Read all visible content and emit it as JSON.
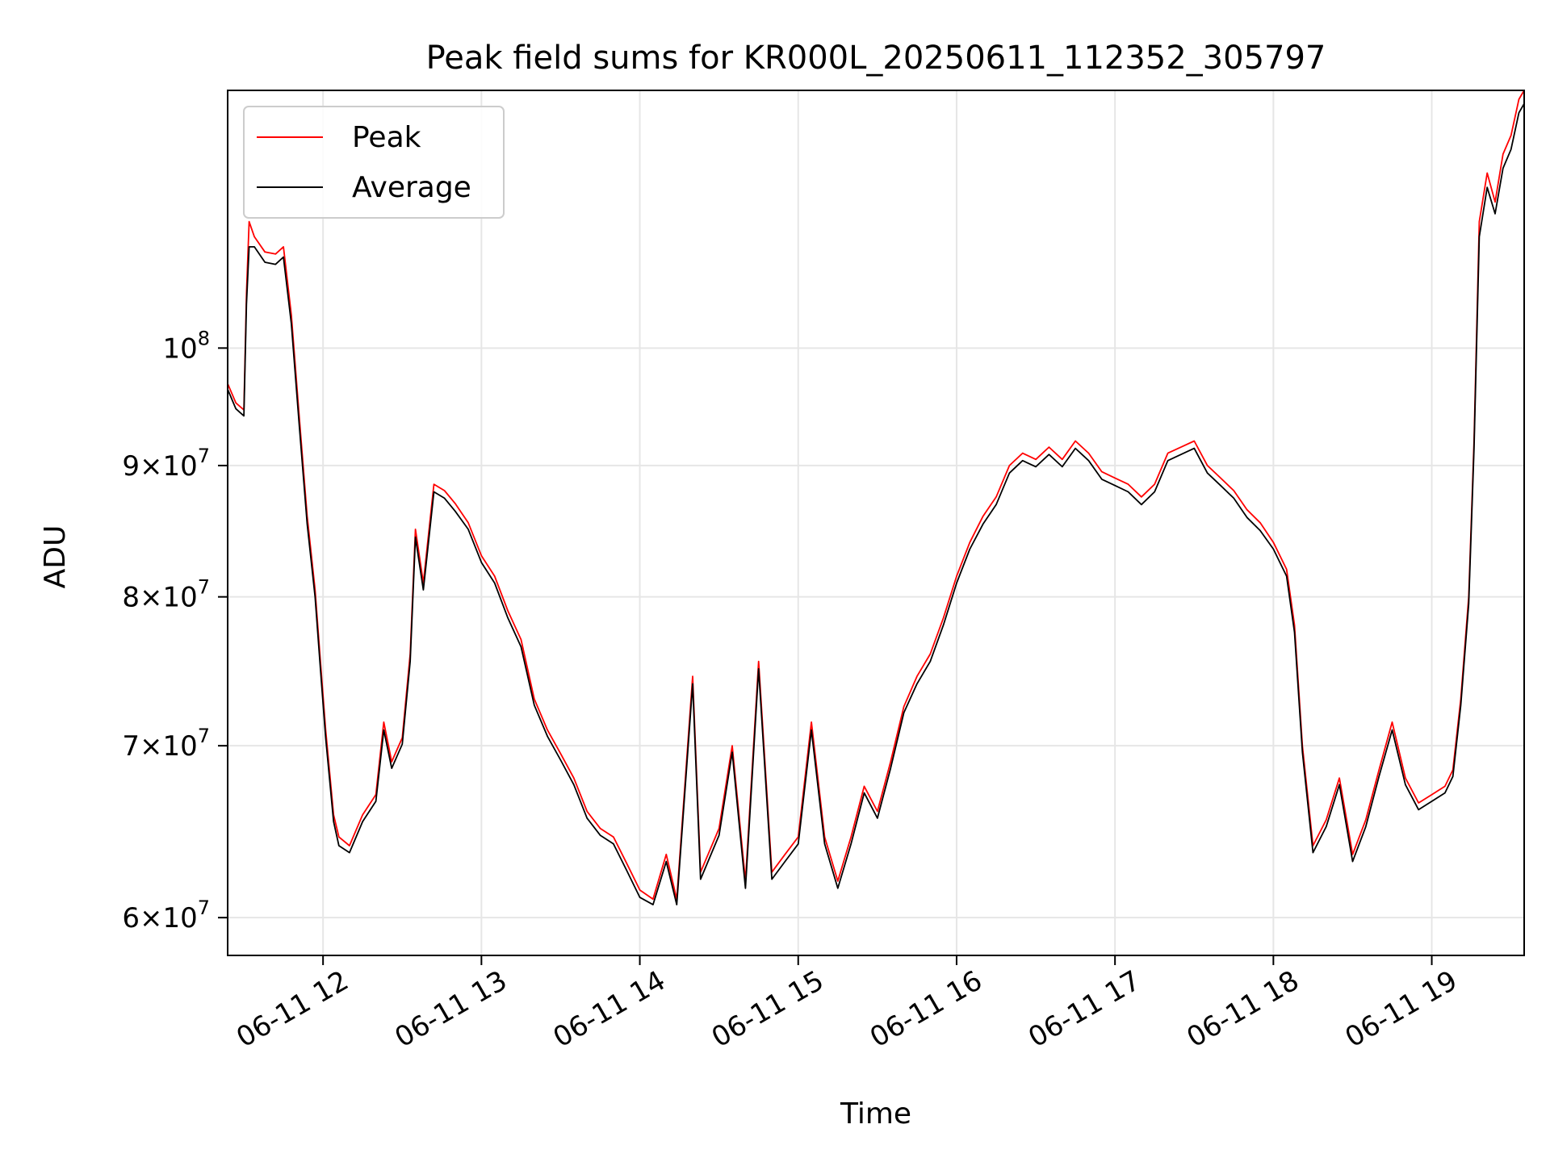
{
  "chart_data": {
    "type": "line",
    "title": "Peak field sums for KR000L_20250611_112352_305797",
    "xlabel": "Time",
    "ylabel": "ADU",
    "yscale": "log",
    "ylim": [
      58000000,
      126000000
    ],
    "xlim": [
      "2025-06-11 11:23:52",
      "2025-06-11 19:35:00"
    ],
    "grid": true,
    "legend_position": "upper left",
    "x_tick_labels": [
      "06-11 12",
      "06-11 13",
      "06-11 14",
      "06-11 15",
      "06-11 16",
      "06-11 17",
      "06-11 18",
      "06-11 19"
    ],
    "x_tick_times": [
      "2025-06-11 12:00",
      "2025-06-11 13:00",
      "2025-06-11 14:00",
      "2025-06-11 15:00",
      "2025-06-11 16:00",
      "2025-06-11 17:00",
      "2025-06-11 18:00",
      "2025-06-11 19:00"
    ],
    "y_ticks": [
      {
        "value": 60000000,
        "mant": "6×10",
        "exp": "7"
      },
      {
        "value": 70000000,
        "mant": "7×10",
        "exp": "7"
      },
      {
        "value": 80000000,
        "mant": "8×10",
        "exp": "7"
      },
      {
        "value": 90000000,
        "mant": "9×10",
        "exp": "7"
      },
      {
        "value": 100000000,
        "mant": "10",
        "exp": "8"
      }
    ],
    "series": [
      {
        "name": "Peak",
        "color": "#ff0000",
        "points": [
          [
            "2025-06-11 11:24",
            96800000
          ],
          [
            "2025-06-11 11:27",
            95200000
          ],
          [
            "2025-06-11 11:30",
            94600000
          ],
          [
            "2025-06-11 11:31",
            105000000
          ],
          [
            "2025-06-11 11:32",
            112000000
          ],
          [
            "2025-06-11 11:34",
            110500000
          ],
          [
            "2025-06-11 11:38",
            109000000
          ],
          [
            "2025-06-11 11:42",
            108800000
          ],
          [
            "2025-06-11 11:45",
            109500000
          ],
          [
            "2025-06-11 11:48",
            103000000
          ],
          [
            "2025-06-11 11:51",
            94000000
          ],
          [
            "2025-06-11 11:54",
            86000000
          ],
          [
            "2025-06-11 11:57",
            80500000
          ],
          [
            "2025-06-11 11:59",
            75500000
          ],
          [
            "2025-06-11 12:01",
            71000000
          ],
          [
            "2025-06-11 12:04",
            65800000
          ],
          [
            "2025-06-11 12:06",
            64500000
          ],
          [
            "2025-06-11 12:10",
            64000000
          ],
          [
            "2025-06-11 12:15",
            65800000
          ],
          [
            "2025-06-11 12:20",
            67000000
          ],
          [
            "2025-06-11 12:23",
            71500000
          ],
          [
            "2025-06-11 12:26",
            69000000
          ],
          [
            "2025-06-11 12:30",
            70500000
          ],
          [
            "2025-06-11 12:33",
            76000000
          ],
          [
            "2025-06-11 12:35",
            85000000
          ],
          [
            "2025-06-11 12:38",
            81000000
          ],
          [
            "2025-06-11 12:42",
            88500000
          ],
          [
            "2025-06-11 12:46",
            88000000
          ],
          [
            "2025-06-11 12:50",
            87000000
          ],
          [
            "2025-06-11 12:55",
            85500000
          ],
          [
            "2025-06-11 13:00",
            83000000
          ],
          [
            "2025-06-11 13:05",
            81500000
          ],
          [
            "2025-06-11 13:10",
            79000000
          ],
          [
            "2025-06-11 13:15",
            77000000
          ],
          [
            "2025-06-11 13:20",
            73000000
          ],
          [
            "2025-06-11 13:25",
            71000000
          ],
          [
            "2025-06-11 13:30",
            69500000
          ],
          [
            "2025-06-11 13:35",
            68000000
          ],
          [
            "2025-06-11 13:40",
            66000000
          ],
          [
            "2025-06-11 13:45",
            65000000
          ],
          [
            "2025-06-11 13:50",
            64500000
          ],
          [
            "2025-06-11 13:55",
            63000000
          ],
          [
            "2025-06-11 14:00",
            61500000
          ],
          [
            "2025-06-11 14:05",
            61000000
          ],
          [
            "2025-06-11 14:10",
            63500000
          ],
          [
            "2025-06-11 14:14",
            61000000
          ],
          [
            "2025-06-11 14:20",
            74500000
          ],
          [
            "2025-06-11 14:23",
            62500000
          ],
          [
            "2025-06-11 14:30",
            65000000
          ],
          [
            "2025-06-11 14:35",
            70000000
          ],
          [
            "2025-06-11 14:40",
            62000000
          ],
          [
            "2025-06-11 14:45",
            75500000
          ],
          [
            "2025-06-11 14:50",
            62500000
          ],
          [
            "2025-06-11 14:55",
            63500000
          ],
          [
            "2025-06-11 15:00",
            64500000
          ],
          [
            "2025-06-11 15:05",
            71500000
          ],
          [
            "2025-06-11 15:10",
            64500000
          ],
          [
            "2025-06-11 15:15",
            62000000
          ],
          [
            "2025-06-11 15:20",
            64500000
          ],
          [
            "2025-06-11 15:25",
            67500000
          ],
          [
            "2025-06-11 15:30",
            66000000
          ],
          [
            "2025-06-11 15:35",
            69000000
          ],
          [
            "2025-06-11 15:40",
            72500000
          ],
          [
            "2025-06-11 15:45",
            74500000
          ],
          [
            "2025-06-11 15:50",
            76000000
          ],
          [
            "2025-06-11 15:55",
            78500000
          ],
          [
            "2025-06-11 16:00",
            81500000
          ],
          [
            "2025-06-11 16:05",
            84000000
          ],
          [
            "2025-06-11 16:10",
            86000000
          ],
          [
            "2025-06-11 16:15",
            87500000
          ],
          [
            "2025-06-11 16:20",
            90000000
          ],
          [
            "2025-06-11 16:25",
            91000000
          ],
          [
            "2025-06-11 16:30",
            90500000
          ],
          [
            "2025-06-11 16:35",
            91500000
          ],
          [
            "2025-06-11 16:40",
            90500000
          ],
          [
            "2025-06-11 16:45",
            92000000
          ],
          [
            "2025-06-11 16:50",
            91000000
          ],
          [
            "2025-06-11 16:55",
            89500000
          ],
          [
            "2025-06-11 17:00",
            89000000
          ],
          [
            "2025-06-11 17:05",
            88500000
          ],
          [
            "2025-06-11 17:10",
            87500000
          ],
          [
            "2025-06-11 17:15",
            88500000
          ],
          [
            "2025-06-11 17:20",
            91000000
          ],
          [
            "2025-06-11 17:25",
            91500000
          ],
          [
            "2025-06-11 17:30",
            92000000
          ],
          [
            "2025-06-11 17:35",
            90000000
          ],
          [
            "2025-06-11 17:40",
            89000000
          ],
          [
            "2025-06-11 17:45",
            88000000
          ],
          [
            "2025-06-11 17:50",
            86500000
          ],
          [
            "2025-06-11 17:55",
            85500000
          ],
          [
            "2025-06-11 18:00",
            84000000
          ],
          [
            "2025-06-11 18:05",
            82000000
          ],
          [
            "2025-06-11 18:08",
            78000000
          ],
          [
            "2025-06-11 18:11",
            70000000
          ],
          [
            "2025-06-11 18:15",
            64000000
          ],
          [
            "2025-06-11 18:20",
            65500000
          ],
          [
            "2025-06-11 18:25",
            68000000
          ],
          [
            "2025-06-11 18:30",
            63500000
          ],
          [
            "2025-06-11 18:35",
            65500000
          ],
          [
            "2025-06-11 18:40",
            68500000
          ],
          [
            "2025-06-11 18:45",
            71500000
          ],
          [
            "2025-06-11 18:50",
            68000000
          ],
          [
            "2025-06-11 18:55",
            66500000
          ],
          [
            "2025-06-11 19:00",
            67000000
          ],
          [
            "2025-06-11 19:05",
            67500000
          ],
          [
            "2025-06-11 19:08",
            68500000
          ],
          [
            "2025-06-11 19:11",
            73000000
          ],
          [
            "2025-06-11 19:14",
            80000000
          ],
          [
            "2025-06-11 19:16",
            92000000
          ],
          [
            "2025-06-11 19:18",
            112000000
          ],
          [
            "2025-06-11 19:21",
            117000000
          ],
          [
            "2025-06-11 19:24",
            114000000
          ],
          [
            "2025-06-11 19:27",
            119000000
          ],
          [
            "2025-06-11 19:30",
            121000000
          ],
          [
            "2025-06-11 19:33",
            125000000
          ],
          [
            "2025-06-11 19:35",
            126000000
          ]
        ]
      },
      {
        "name": "Average",
        "color": "#000000",
        "points": [
          [
            "2025-06-11 11:24",
            96300000
          ],
          [
            "2025-06-11 11:27",
            94700000
          ],
          [
            "2025-06-11 11:30",
            94100000
          ],
          [
            "2025-06-11 11:31",
            104000000
          ],
          [
            "2025-06-11 11:32",
            109500000
          ],
          [
            "2025-06-11 11:34",
            109500000
          ],
          [
            "2025-06-11 11:38",
            108000000
          ],
          [
            "2025-06-11 11:42",
            107800000
          ],
          [
            "2025-06-11 11:45",
            108500000
          ],
          [
            "2025-06-11 11:48",
            102200000
          ],
          [
            "2025-06-11 11:51",
            93300000
          ],
          [
            "2025-06-11 11:54",
            85400000
          ],
          [
            "2025-06-11 11:57",
            80000000
          ],
          [
            "2025-06-11 11:59",
            75000000
          ],
          [
            "2025-06-11 12:01",
            70500000
          ],
          [
            "2025-06-11 12:04",
            65400000
          ],
          [
            "2025-06-11 12:06",
            64000000
          ],
          [
            "2025-06-11 12:10",
            63600000
          ],
          [
            "2025-06-11 12:15",
            65400000
          ],
          [
            "2025-06-11 12:20",
            66600000
          ],
          [
            "2025-06-11 12:23",
            71000000
          ],
          [
            "2025-06-11 12:26",
            68600000
          ],
          [
            "2025-06-11 12:30",
            70100000
          ],
          [
            "2025-06-11 12:33",
            75500000
          ],
          [
            "2025-06-11 12:35",
            84400000
          ],
          [
            "2025-06-11 12:38",
            80500000
          ],
          [
            "2025-06-11 12:42",
            87900000
          ],
          [
            "2025-06-11 12:46",
            87400000
          ],
          [
            "2025-06-11 12:50",
            86400000
          ],
          [
            "2025-06-11 12:55",
            85000000
          ],
          [
            "2025-06-11 13:00",
            82500000
          ],
          [
            "2025-06-11 13:05",
            81000000
          ],
          [
            "2025-06-11 13:10",
            78500000
          ],
          [
            "2025-06-11 13:15",
            76500000
          ],
          [
            "2025-06-11 13:20",
            72600000
          ],
          [
            "2025-06-11 13:25",
            70600000
          ],
          [
            "2025-06-11 13:30",
            69100000
          ],
          [
            "2025-06-11 13:35",
            67600000
          ],
          [
            "2025-06-11 13:40",
            65600000
          ],
          [
            "2025-06-11 13:45",
            64600000
          ],
          [
            "2025-06-11 13:50",
            64100000
          ],
          [
            "2025-06-11 13:55",
            62600000
          ],
          [
            "2025-06-11 14:00",
            61100000
          ],
          [
            "2025-06-11 14:05",
            60700000
          ],
          [
            "2025-06-11 14:10",
            63100000
          ],
          [
            "2025-06-11 14:14",
            60700000
          ],
          [
            "2025-06-11 14:20",
            74000000
          ],
          [
            "2025-06-11 14:23",
            62100000
          ],
          [
            "2025-06-11 14:30",
            64600000
          ],
          [
            "2025-06-11 14:35",
            69600000
          ],
          [
            "2025-06-11 14:40",
            61600000
          ],
          [
            "2025-06-11 14:45",
            75000000
          ],
          [
            "2025-06-11 14:50",
            62100000
          ],
          [
            "2025-06-11 14:55",
            63100000
          ],
          [
            "2025-06-11 15:00",
            64100000
          ],
          [
            "2025-06-11 15:05",
            71000000
          ],
          [
            "2025-06-11 15:10",
            64100000
          ],
          [
            "2025-06-11 15:15",
            61600000
          ],
          [
            "2025-06-11 15:20",
            64100000
          ],
          [
            "2025-06-11 15:25",
            67100000
          ],
          [
            "2025-06-11 15:30",
            65600000
          ],
          [
            "2025-06-11 15:35",
            68600000
          ],
          [
            "2025-06-11 15:40",
            72100000
          ],
          [
            "2025-06-11 15:45",
            74000000
          ],
          [
            "2025-06-11 15:50",
            75500000
          ],
          [
            "2025-06-11 15:55",
            78000000
          ],
          [
            "2025-06-11 16:00",
            81000000
          ],
          [
            "2025-06-11 16:05",
            83500000
          ],
          [
            "2025-06-11 16:10",
            85400000
          ],
          [
            "2025-06-11 16:15",
            86900000
          ],
          [
            "2025-06-11 16:20",
            89400000
          ],
          [
            "2025-06-11 16:25",
            90400000
          ],
          [
            "2025-06-11 16:30",
            89900000
          ],
          [
            "2025-06-11 16:35",
            90900000
          ],
          [
            "2025-06-11 16:40",
            89900000
          ],
          [
            "2025-06-11 16:45",
            91400000
          ],
          [
            "2025-06-11 16:50",
            90400000
          ],
          [
            "2025-06-11 16:55",
            88900000
          ],
          [
            "2025-06-11 17:00",
            88400000
          ],
          [
            "2025-06-11 17:05",
            87900000
          ],
          [
            "2025-06-11 17:10",
            86900000
          ],
          [
            "2025-06-11 17:15",
            87900000
          ],
          [
            "2025-06-11 17:20",
            90400000
          ],
          [
            "2025-06-11 17:25",
            90900000
          ],
          [
            "2025-06-11 17:30",
            91400000
          ],
          [
            "2025-06-11 17:35",
            89400000
          ],
          [
            "2025-06-11 17:40",
            88400000
          ],
          [
            "2025-06-11 17:45",
            87400000
          ],
          [
            "2025-06-11 17:50",
            85900000
          ],
          [
            "2025-06-11 17:55",
            84900000
          ],
          [
            "2025-06-11 18:00",
            83500000
          ],
          [
            "2025-06-11 18:05",
            81500000
          ],
          [
            "2025-06-11 18:08",
            77500000
          ],
          [
            "2025-06-11 18:11",
            69600000
          ],
          [
            "2025-06-11 18:15",
            63600000
          ],
          [
            "2025-06-11 18:20",
            65100000
          ],
          [
            "2025-06-11 18:25",
            67600000
          ],
          [
            "2025-06-11 18:30",
            63100000
          ],
          [
            "2025-06-11 18:35",
            65100000
          ],
          [
            "2025-06-11 18:40",
            68100000
          ],
          [
            "2025-06-11 18:45",
            71000000
          ],
          [
            "2025-06-11 18:50",
            67600000
          ],
          [
            "2025-06-11 18:55",
            66100000
          ],
          [
            "2025-06-11 19:00",
            66600000
          ],
          [
            "2025-06-11 19:05",
            67100000
          ],
          [
            "2025-06-11 19:08",
            68100000
          ],
          [
            "2025-06-11 19:11",
            72600000
          ],
          [
            "2025-06-11 19:14",
            79500000
          ],
          [
            "2025-06-11 19:16",
            91400000
          ],
          [
            "2025-06-11 19:18",
            110500000
          ],
          [
            "2025-06-11 19:21",
            115500000
          ],
          [
            "2025-06-11 19:24",
            112800000
          ],
          [
            "2025-06-11 19:27",
            117500000
          ],
          [
            "2025-06-11 19:30",
            119500000
          ],
          [
            "2025-06-11 19:33",
            123500000
          ],
          [
            "2025-06-11 19:35",
            124500000
          ]
        ]
      }
    ]
  }
}
